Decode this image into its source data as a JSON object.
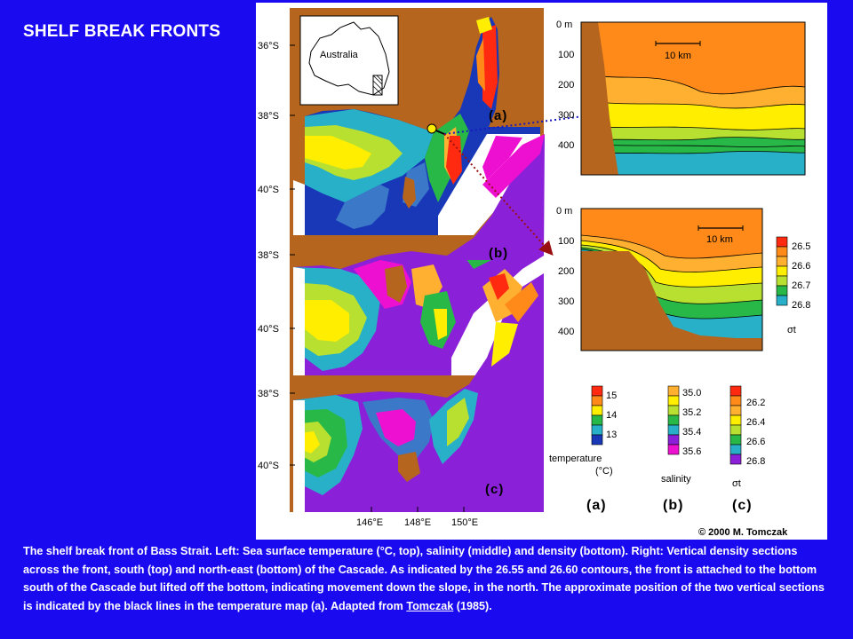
{
  "page": {
    "title": "SHELF BREAK FRONTS"
  },
  "maps": {
    "inset_label": "Australia",
    "lat_labels": [
      "36°S",
      "38°S",
      "40°S",
      "38°S",
      "40°S",
      "38°S",
      "40°S"
    ],
    "lon_labels": [
      "146°E",
      "148°E",
      "150°E"
    ],
    "panel_labels": [
      "(a)",
      "(b)",
      "(c)"
    ]
  },
  "sections": {
    "depth_labels": [
      "0 m",
      "100",
      "200",
      "300",
      "400"
    ],
    "scale_label": "10 km",
    "sigma_scale": {
      "values": [
        "26.5",
        "26.6",
        "26.7",
        "26.8"
      ],
      "label": "σt"
    }
  },
  "legends": {
    "temperature": {
      "values": [
        "15",
        "14",
        "13"
      ],
      "label": "temperature",
      "unit": "(°C)",
      "panel": "(a)"
    },
    "salinity": {
      "values": [
        "35.0",
        "35.2",
        "35.4",
        "35.6"
      ],
      "label": "salinity",
      "panel": "(b)"
    },
    "density": {
      "values": [
        "26.2",
        "26.4",
        "26.6",
        "26.8"
      ],
      "label": "σt",
      "panel": "(c)"
    }
  },
  "colors": {
    "background": "#1a0af0",
    "land": "#b5651d",
    "red": "#ff2a10",
    "orange": "#ff8a1a",
    "light_orange": "#ffb030",
    "yellow": "#ffee00",
    "yellow_green": "#b8e030",
    "green": "#28b848",
    "teal": "#28b0c8",
    "blue": "#3c78c8",
    "dark_blue": "#1838b8",
    "purple": "#8a20d8",
    "magenta": "#ee10d0"
  },
  "copyright": "© 2000 M. Tomczak",
  "caption": {
    "text": "The shelf break front of Bass Strait. Left: Sea surface temperature (°C, top), salinity (middle) and density (bottom). Right: Vertical density sections across the front, south (top) and north-east (bottom) of the Cascade. As indicated by the 26.55 and 26.60 contours, the front is attached to the bottom south of the Cascade but lifted off the bottom, indicating movement down the slope, in the north. The approximate position of the two vertical sections is indicated by the black lines in the temperature map (a). Adapted from",
    "link_text": "Tomczak",
    "suffix": " (1985)."
  }
}
